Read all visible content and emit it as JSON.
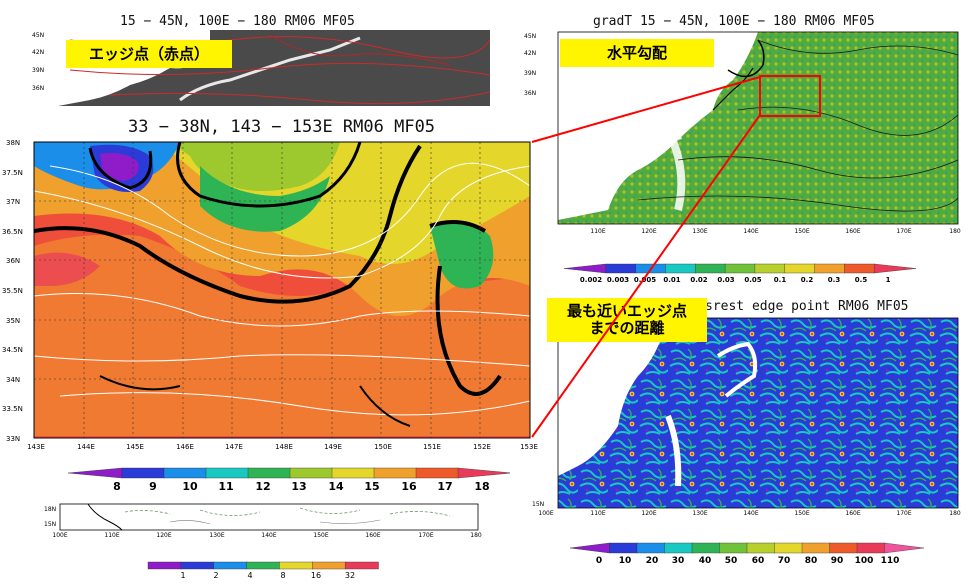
{
  "colors": {
    "sst_scale": [
      "#8e1cc8",
      "#2a3bd8",
      "#1a8ee8",
      "#19c8c0",
      "#2fb455",
      "#9ec92e",
      "#e4d62a",
      "#f0a02c",
      "#ee5a2a",
      "#ea3a5a"
    ],
    "gradt_scale": [
      "#8e1cc8",
      "#2a3bd8",
      "#1a8ee8",
      "#19c8c0",
      "#2fb455",
      "#6fc23a",
      "#b8d02e",
      "#e4d62a",
      "#f0a02c",
      "#ee5a2a",
      "#ea3a5a"
    ],
    "dist_scale": [
      "#8e1cc8",
      "#2a3bd8",
      "#1a8ee8",
      "#19c8c0",
      "#2fb455",
      "#6fc23a",
      "#b8d02e",
      "#e4d62a",
      "#f0a02c",
      "#ee5a2a",
      "#ea3a5a",
      "#f0549e"
    ],
    "small_scale": [
      "#8e1cc8",
      "#2a3bd8",
      "#1a8ee8",
      "#2fb455",
      "#e4d62a",
      "#f0a02c",
      "#ea3a5a"
    ],
    "highlight": "#ff0000",
    "label_bg": "#fff500"
  },
  "panels": {
    "edge_map": {
      "title": "15 − 45N, 100E − 180   RM06 MF05",
      "label": "エッジ点（赤点）",
      "lat_ticks": [
        "45N",
        "42N",
        "39N",
        "36N"
      ]
    },
    "zoom_sst": {
      "title": "33 − 38N, 143 − 153E   RM06 MF05",
      "lat_ticks": [
        "38N",
        "37.5N",
        "37N",
        "36.5N",
        "36N",
        "35.5N",
        "35N",
        "34.5N",
        "34N",
        "33.5N",
        "33N"
      ],
      "lon_ticks": [
        "143E",
        "144E",
        "145E",
        "146E",
        "147E",
        "148E",
        "149E",
        "150E",
        "151E",
        "152E",
        "153E"
      ],
      "colorbar_labels": [
        "8",
        "9",
        "10",
        "11",
        "12",
        "13",
        "14",
        "15",
        "16",
        "17",
        "18"
      ]
    },
    "small_map": {
      "lat_ticks": [
        "18N",
        "15N"
      ],
      "lon_ticks": [
        "100E",
        "110E",
        "120E",
        "130E",
        "140E",
        "150E",
        "160E",
        "170E",
        "180"
      ],
      "colorbar_labels": [
        "1",
        "2",
        "4",
        "8",
        "16",
        "32"
      ]
    },
    "gradt": {
      "title": "gradT  15 − 45N, 100E − 180   RM06 MF05",
      "label": "水平勾配",
      "lat_ticks": [
        "45N",
        "42N",
        "39N",
        "36N"
      ],
      "lon_ticks": [
        "110E",
        "120E",
        "130E",
        "140E",
        "150E",
        "160E",
        "170E",
        "180"
      ],
      "colorbar_labels": [
        "0.002",
        "0.003",
        "0.005",
        "0.01",
        "0.02",
        "0.03",
        "0.05",
        "0.1",
        "0.2",
        "0.3",
        "0.5",
        "1"
      ]
    },
    "distance": {
      "title": "srest edge point   RM06 MF05",
      "label_line1": "最も近いエッジ点",
      "label_line2": "までの距離",
      "lat_ticks": [
        "15N"
      ],
      "lon_ticks": [
        "100E",
        "110E",
        "120E",
        "130E",
        "140E",
        "150E",
        "160E",
        "170E",
        "180"
      ],
      "colorbar_labels": [
        "0",
        "10",
        "20",
        "30",
        "40",
        "50",
        "60",
        "70",
        "80",
        "90",
        "100",
        "110"
      ]
    }
  }
}
